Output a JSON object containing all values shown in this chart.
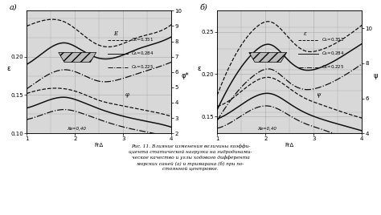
{
  "panel_a": {
    "title": "а)",
    "xlabel": "FrΔ",
    "ylabel_left": "ε",
    "ylabel_right": "φ*",
    "xlim": [
      1,
      4
    ],
    "ylim_left": [
      0.1,
      0.26
    ],
    "ylim_right": [
      2,
      10
    ],
    "yticks_left": [
      0.1,
      0.15,
      0.2
    ],
    "yticks_right": [
      2,
      3,
      4,
      5,
      6,
      7,
      8,
      9,
      10
    ],
    "xticks": [
      1,
      2,
      3,
      4
    ],
    "label_xg": "Xв=0,40",
    "label_e": "E",
    "label_phi": "φ",
    "cb_values": [
      "0,351",
      "0,284",
      "0,225"
    ],
    "epsilon_curves": {
      "cb351": [
        [
          1.0,
          0.24
        ],
        [
          1.4,
          0.248
        ],
        [
          1.8,
          0.245
        ],
        [
          2.1,
          0.232
        ],
        [
          2.5,
          0.215
        ],
        [
          2.9,
          0.215
        ],
        [
          3.3,
          0.225
        ],
        [
          3.7,
          0.232
        ],
        [
          4.0,
          0.242
        ]
      ],
      "cb284": [
        [
          1.0,
          0.19
        ],
        [
          1.4,
          0.208
        ],
        [
          1.8,
          0.218
        ],
        [
          2.1,
          0.21
        ],
        [
          2.5,
          0.198
        ],
        [
          2.9,
          0.2
        ],
        [
          3.3,
          0.21
        ],
        [
          3.7,
          0.218
        ],
        [
          4.0,
          0.226
        ]
      ],
      "cb225": [
        [
          1.0,
          0.158
        ],
        [
          1.4,
          0.175
        ],
        [
          1.8,
          0.183
        ],
        [
          2.1,
          0.178
        ],
        [
          2.5,
          0.168
        ],
        [
          2.9,
          0.17
        ],
        [
          3.3,
          0.178
        ],
        [
          3.7,
          0.186
        ],
        [
          4.0,
          0.193
        ]
      ]
    },
    "phi_curves": {
      "cb351": [
        [
          1.0,
          0.152
        ],
        [
          1.4,
          0.158
        ],
        [
          1.8,
          0.158
        ],
        [
          2.1,
          0.153
        ],
        [
          2.5,
          0.143
        ],
        [
          2.9,
          0.137
        ],
        [
          3.3,
          0.132
        ],
        [
          3.7,
          0.127
        ],
        [
          4.0,
          0.122
        ]
      ],
      "cb284": [
        [
          1.0,
          0.133
        ],
        [
          1.4,
          0.142
        ],
        [
          1.8,
          0.147
        ],
        [
          2.1,
          0.142
        ],
        [
          2.5,
          0.132
        ],
        [
          2.9,
          0.124
        ],
        [
          3.3,
          0.118
        ],
        [
          3.7,
          0.113
        ],
        [
          4.0,
          0.108
        ]
      ],
      "cb225": [
        [
          1.0,
          0.118
        ],
        [
          1.4,
          0.126
        ],
        [
          1.8,
          0.131
        ],
        [
          2.1,
          0.127
        ],
        [
          2.5,
          0.118
        ],
        [
          2.9,
          0.11
        ],
        [
          3.3,
          0.104
        ],
        [
          3.7,
          0.099
        ],
        [
          4.0,
          0.094
        ]
      ]
    }
  },
  "panel_b": {
    "title": "б)",
    "xlabel": "FrΔ",
    "ylabel_left": "ε",
    "ylabel_right": "ψ",
    "xlim": [
      1,
      4
    ],
    "ylim_left": [
      0.13,
      0.275
    ],
    "ylim_right": [
      4,
      11
    ],
    "yticks_left": [
      0.15,
      0.2,
      0.25
    ],
    "yticks_right": [
      4,
      6,
      8,
      10
    ],
    "xticks": [
      1,
      2,
      3,
      4
    ],
    "label_xg": "Xв=0,40",
    "label_e": "ε",
    "label_psi": "ψ",
    "cb_values": [
      "0,351",
      "0,284",
      "0,225"
    ],
    "epsilon_curves": {
      "cb351": [
        [
          1.0,
          0.175
        ],
        [
          1.4,
          0.225
        ],
        [
          1.8,
          0.255
        ],
        [
          2.1,
          0.262
        ],
        [
          2.5,
          0.242
        ],
        [
          2.8,
          0.228
        ],
        [
          3.1,
          0.228
        ],
        [
          3.5,
          0.238
        ],
        [
          4.0,
          0.258
        ]
      ],
      "cb284": [
        [
          1.0,
          0.158
        ],
        [
          1.4,
          0.2
        ],
        [
          1.8,
          0.228
        ],
        [
          2.1,
          0.235
        ],
        [
          2.5,
          0.215
        ],
        [
          2.8,
          0.205
        ],
        [
          3.1,
          0.207
        ],
        [
          3.5,
          0.218
        ],
        [
          4.0,
          0.236
        ]
      ],
      "cb225": [
        [
          1.0,
          0.145
        ],
        [
          1.4,
          0.178
        ],
        [
          1.8,
          0.2
        ],
        [
          2.1,
          0.206
        ],
        [
          2.5,
          0.19
        ],
        [
          2.8,
          0.182
        ],
        [
          3.1,
          0.184
        ],
        [
          3.5,
          0.194
        ],
        [
          4.0,
          0.212
        ]
      ]
    },
    "psi_curves": {
      "cb351": [
        [
          1.0,
          0.162
        ],
        [
          1.4,
          0.175
        ],
        [
          1.8,
          0.192
        ],
        [
          2.1,
          0.196
        ],
        [
          2.5,
          0.183
        ],
        [
          2.8,
          0.172
        ],
        [
          3.1,
          0.165
        ],
        [
          3.5,
          0.157
        ],
        [
          4.0,
          0.148
        ]
      ],
      "cb284": [
        [
          1.0,
          0.147
        ],
        [
          1.4,
          0.16
        ],
        [
          1.8,
          0.174
        ],
        [
          2.1,
          0.177
        ],
        [
          2.5,
          0.165
        ],
        [
          2.8,
          0.155
        ],
        [
          3.1,
          0.148
        ],
        [
          3.5,
          0.141
        ],
        [
          4.0,
          0.133
        ]
      ],
      "cb225": [
        [
          1.0,
          0.136
        ],
        [
          1.4,
          0.147
        ],
        [
          1.8,
          0.16
        ],
        [
          2.1,
          0.162
        ],
        [
          2.5,
          0.151
        ],
        [
          2.8,
          0.142
        ],
        [
          3.1,
          0.136
        ],
        [
          3.5,
          0.128
        ],
        [
          4.0,
          0.121
        ]
      ]
    }
  },
  "caption": "Рис. 11. Влияние изменения величины коэффи-\nциента статической нагрузки на гидродинами-\nческое качество и углы ходового дифферента\nморских саней (а) и тримарана (б) при по-\nстоянной центровке.",
  "bg_color": "#d8d8d8",
  "grid_color": "#aaaaaa",
  "line_color": "#111111"
}
